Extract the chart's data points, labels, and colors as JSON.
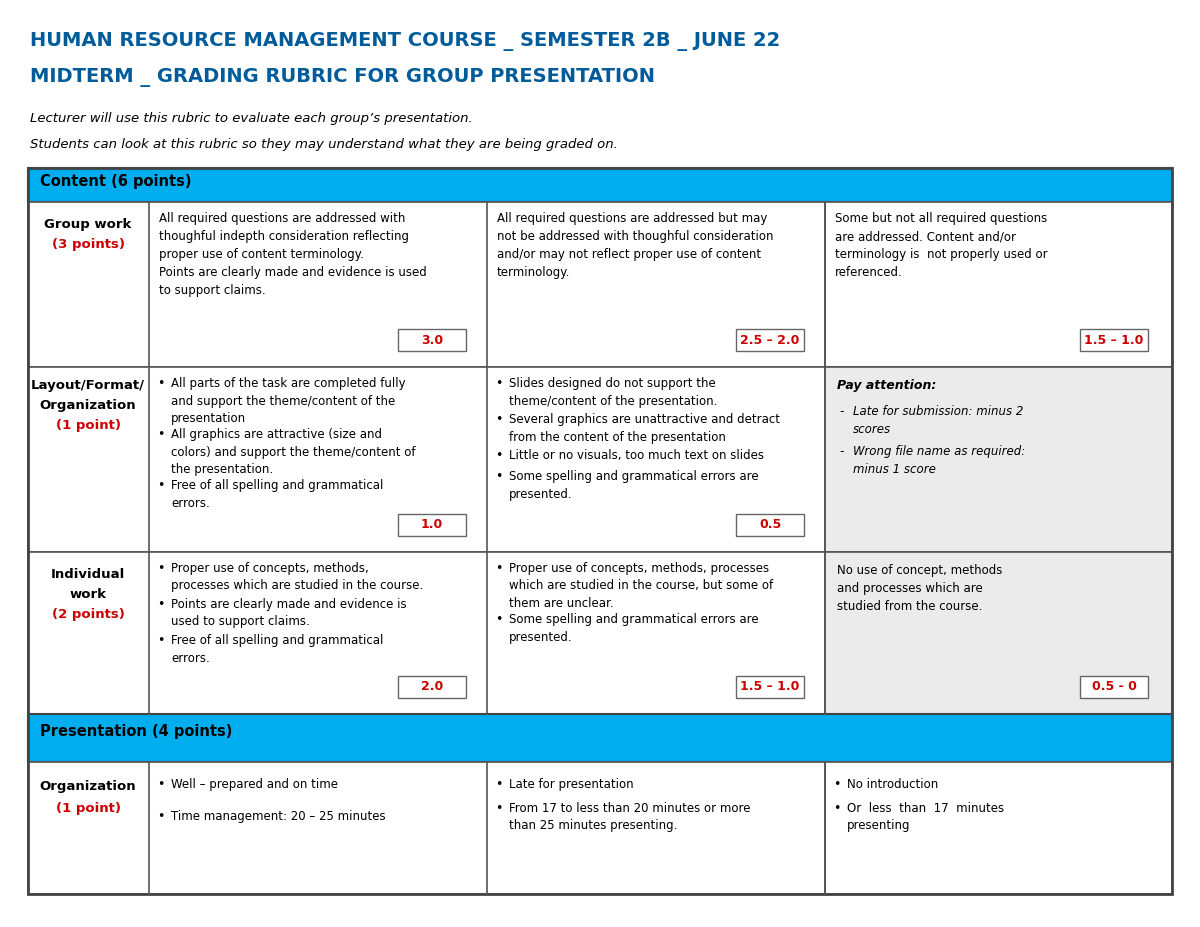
{
  "title1": "HUMAN RESOURCE MANAGEMENT COURSE _ SEMESTER 2B _ JUNE 22",
  "title2": "MIDTERM _ GRADING RUBRIC FOR GROUP PRESENTATION",
  "subtitle1": "Lecturer will use this rubric to evaluate each group’s presentation.",
  "subtitle2": "Students can look at this rubric so they may understand what they are being graded on.",
  "header_color": "#00AEEF",
  "title_color": "#005B9A",
  "red_color": "#CC0000",
  "bg_color": "#FFFFFF",
  "gray_bg": "#EBEBEB",
  "section_headers": [
    "Content (6 points)",
    "Presentation (4 points)"
  ]
}
